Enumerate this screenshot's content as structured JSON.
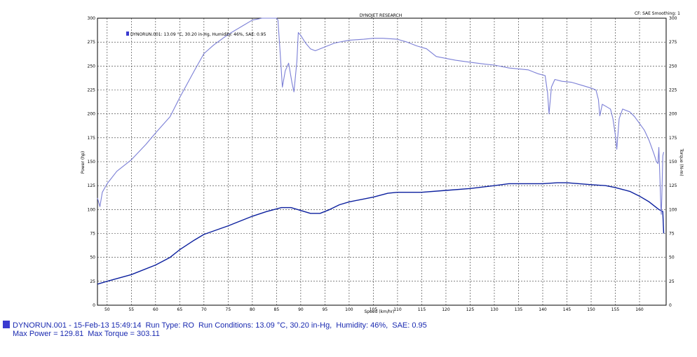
{
  "chart_data": {
    "type": "line",
    "title": "DYNOJET RESEARCH",
    "top_right_label": "CF: SAE Smoothing: 1",
    "xlabel": "Speed (km/hr)",
    "ylabel_left": "Power (hp)",
    "ylabel_right": "Torque (N-m)",
    "xlim": [
      48,
      165.5
    ],
    "ylim": [
      0,
      300
    ],
    "x_ticks": [
      50,
      55,
      60,
      65,
      70,
      75,
      80,
      85,
      90,
      95,
      100,
      105,
      110,
      115,
      120,
      125,
      130,
      135,
      140,
      145,
      150,
      155,
      160
    ],
    "y_ticks": [
      0,
      25,
      50,
      75,
      100,
      125,
      150,
      175,
      200,
      225,
      250,
      275,
      300
    ],
    "y_tick_labels": [
      "0",
      "25",
      "50",
      "75",
      "100",
      "125",
      "150",
      "175",
      "200",
      "225",
      "250",
      "275",
      "300"
    ],
    "legend_entry": "DYNORUN.001: 13.09 °C, 30.20 in-Hg, Humidity: 46%, SAE: 0.95",
    "series": [
      {
        "name": "Power (hp)",
        "color": "#0b1f9e",
        "points": [
          [
            48,
            22
          ],
          [
            50,
            25
          ],
          [
            55,
            32
          ],
          [
            60,
            42
          ],
          [
            63,
            50
          ],
          [
            65,
            58
          ],
          [
            68,
            68
          ],
          [
            70,
            74
          ],
          [
            75,
            83
          ],
          [
            80,
            93
          ],
          [
            83,
            98
          ],
          [
            86,
            102
          ],
          [
            88,
            102
          ],
          [
            90,
            99
          ],
          [
            92,
            96
          ],
          [
            94,
            96
          ],
          [
            96,
            100
          ],
          [
            98,
            105
          ],
          [
            100,
            108
          ],
          [
            105,
            113
          ],
          [
            108,
            117
          ],
          [
            110,
            118
          ],
          [
            115,
            118
          ],
          [
            120,
            120
          ],
          [
            125,
            122
          ],
          [
            130,
            125
          ],
          [
            133,
            127
          ],
          [
            135,
            127
          ],
          [
            140,
            127
          ],
          [
            143,
            128
          ],
          [
            145,
            128
          ],
          [
            150,
            126
          ],
          [
            153,
            125
          ],
          [
            155,
            123
          ],
          [
            158,
            119
          ],
          [
            160,
            114
          ],
          [
            162,
            108
          ],
          [
            164,
            100
          ],
          [
            164.8,
            98
          ],
          [
            165,
            75
          ]
        ]
      },
      {
        "name": "Torque (N-m)",
        "color": "#7b7fd6",
        "points": [
          [
            48,
            112
          ],
          [
            48.5,
            103
          ],
          [
            49,
            118
          ],
          [
            50,
            127
          ],
          [
            52,
            140
          ],
          [
            55,
            152
          ],
          [
            58,
            168
          ],
          [
            60,
            180
          ],
          [
            63,
            197
          ],
          [
            65,
            217
          ],
          [
            68,
            245
          ],
          [
            70,
            263
          ],
          [
            72,
            272
          ],
          [
            75,
            283
          ],
          [
            78,
            292
          ],
          [
            80,
            298
          ],
          [
            82,
            300
          ],
          [
            84,
            300
          ],
          [
            85,
            300
          ],
          [
            85.3,
            298
          ],
          [
            85.8,
            260
          ],
          [
            86.2,
            228
          ],
          [
            86.8,
            245
          ],
          [
            87.5,
            253
          ],
          [
            88.2,
            232
          ],
          [
            88.6,
            223
          ],
          [
            89.2,
            255
          ],
          [
            89.5,
            285
          ],
          [
            90,
            282
          ],
          [
            91,
            274
          ],
          [
            92,
            268
          ],
          [
            93,
            266
          ],
          [
            95,
            270
          ],
          [
            97,
            274
          ],
          [
            100,
            277
          ],
          [
            103,
            278
          ],
          [
            105,
            279
          ],
          [
            107,
            279
          ],
          [
            110,
            278
          ],
          [
            112,
            275
          ],
          [
            114,
            271
          ],
          [
            116,
            268
          ],
          [
            118,
            260
          ],
          [
            120,
            258
          ],
          [
            122,
            256
          ],
          [
            125,
            254
          ],
          [
            128,
            252
          ],
          [
            130,
            251
          ],
          [
            133,
            248
          ],
          [
            135,
            247
          ],
          [
            137,
            246
          ],
          [
            139,
            242
          ],
          [
            140.5,
            240
          ],
          [
            141,
            222
          ],
          [
            141.3,
            200
          ],
          [
            141.8,
            228
          ],
          [
            142.5,
            236
          ],
          [
            144,
            234
          ],
          [
            146,
            233
          ],
          [
            148,
            230
          ],
          [
            150,
            227
          ],
          [
            151,
            225
          ],
          [
            151.5,
            215
          ],
          [
            151.8,
            198
          ],
          [
            152.3,
            210
          ],
          [
            153,
            208
          ],
          [
            154,
            205
          ],
          [
            154.5,
            195
          ],
          [
            155,
            178
          ],
          [
            155.3,
            163
          ],
          [
            155.8,
            195
          ],
          [
            156.5,
            205
          ],
          [
            158,
            202
          ],
          [
            159,
            197
          ],
          [
            160,
            190
          ],
          [
            161,
            183
          ],
          [
            162,
            172
          ],
          [
            163,
            158
          ],
          [
            163.5,
            150
          ],
          [
            163.8,
            148
          ],
          [
            164,
            165
          ],
          [
            164.2,
            135
          ],
          [
            164.4,
            104
          ],
          [
            164.5,
            95
          ],
          [
            164.6,
            112
          ],
          [
            164.8,
            156
          ],
          [
            165,
            160
          ]
        ]
      }
    ]
  },
  "footer": {
    "line1_run": "DYNORUN.001",
    "line1_date": "15-Feb-13 15:49:14",
    "line1_runtype": "Run Type: RO",
    "line1_conditions": "Run Conditions: 13.09 °C, 30.20 in-Hg,",
    "line1_humidity": "Humidity:  46%,",
    "line1_sae": "SAE: 0.95",
    "line2_max_power": "Max Power = 129.81",
    "line2_max_torque": "Max Torque = 303.11",
    "swatch_color": "#3a3ad0"
  }
}
